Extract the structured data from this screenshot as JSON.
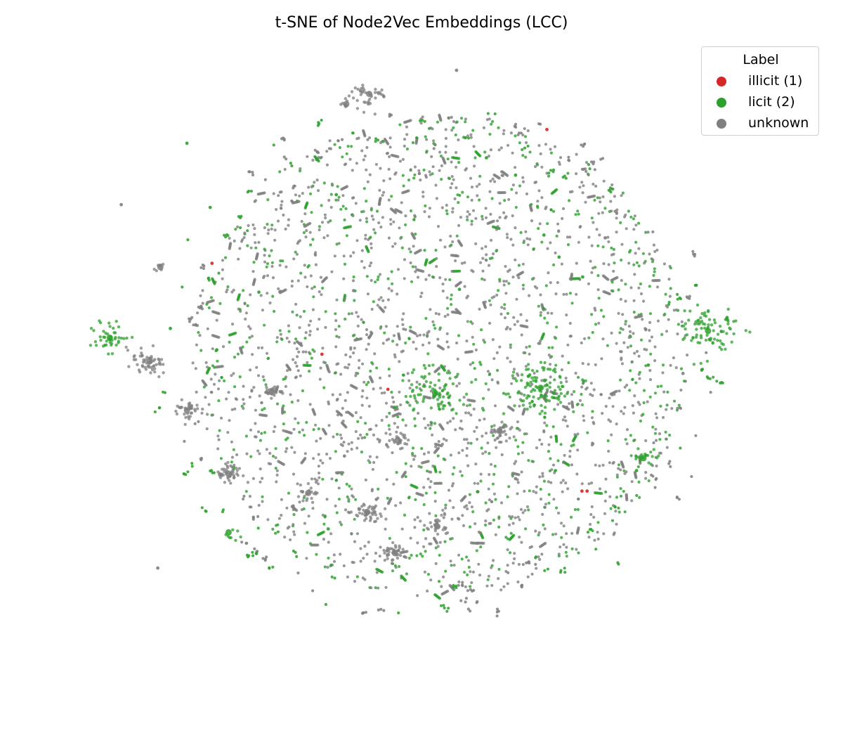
{
  "chart_data": {
    "type": "scatter",
    "title": "t-SNE of Node2Vec Embeddings (LCC)",
    "xlabel": "",
    "ylabel": "",
    "axes_visible": false,
    "grid": false,
    "legend": {
      "title": "Label",
      "placement": "top-right",
      "entries": [
        {
          "label": "illicit (1)",
          "color": "#d62728"
        },
        {
          "label": "licit (2)",
          "color": "#2ca02c"
        },
        {
          "label": "unknown",
          "color": "#7f7f7f"
        }
      ]
    },
    "xlim": [
      -100,
      100
    ],
    "ylim": [
      -100,
      100
    ],
    "series": [
      {
        "name": "illicit (1)",
        "color": "#d62728",
        "x": [
          34.0,
          43.5,
          44.9,
          -27.0,
          -9.1,
          -56.8
        ],
        "y": [
          80.9,
          -35.6,
          -35.6,
          8.5,
          -2.8,
          37.8
        ],
        "clusters": []
      },
      {
        "name": "licit (2)",
        "color": "#2ca02c",
        "x": [
          -63.6,
          -57.3,
          -23.1,
          17.6,
          25.5,
          -44.1,
          10.3,
          37.3,
          -68.1,
          -55.5,
          33.2,
          43.7,
          -25.3,
          15.2,
          58.3,
          61.5
        ],
        "y": [
          76.5,
          55.8,
          59.9,
          71.8,
          66.2,
          28.5,
          29.4,
          39.8,
          16.8,
          9.9,
          46.9,
          33.4,
          -47.8,
          -35.8,
          -29.0,
          5.0
        ],
        "clusters": [
          {
            "cx": -84.5,
            "cy": 13.8,
            "spread": 2.5,
            "n": 45
          },
          {
            "cx": 77.7,
            "cy": 16.0,
            "spread": 4.2,
            "n": 90
          },
          {
            "cx": 32.3,
            "cy": -2.3,
            "spread": 5.0,
            "n": 110
          },
          {
            "cx": 3.7,
            "cy": -4.0,
            "spread": 5.5,
            "n": 90
          },
          {
            "cx": 60.2,
            "cy": -25.0,
            "spread": 1.6,
            "n": 20
          },
          {
            "cx": -52.3,
            "cy": -48.9,
            "spread": 1.4,
            "n": 8
          }
        ]
      },
      {
        "name": "unknown",
        "color": "#7f7f7f",
        "x": [
          9.5,
          -81.4,
          -71.5,
          49.8,
          -20.9,
          70.9,
          25.5,
          -18.4,
          -34.8
        ],
        "y": [
          100.0,
          56.7,
          -60.4,
          46.0,
          -24.3,
          2.3,
          -31.6,
          29.0,
          -40.4
        ],
        "clusters": [
          {
            "cx": -14.2,
            "cy": 92.4,
            "spread": 2.4,
            "n": 40
          },
          {
            "cx": -73.7,
            "cy": 6.2,
            "spread": 2.5,
            "n": 55
          },
          {
            "cx": -63.6,
            "cy": -9.6,
            "spread": 1.8,
            "n": 35
          },
          {
            "cx": -52.5,
            "cy": -29.9,
            "spread": 1.8,
            "n": 35
          },
          {
            "cx": -14.7,
            "cy": -42.4,
            "spread": 2.2,
            "n": 40
          },
          {
            "cx": 4.3,
            "cy": -47.0,
            "spread": 2.0,
            "n": 30
          },
          {
            "cx": -6.5,
            "cy": -19.2,
            "spread": 1.5,
            "n": 25
          },
          {
            "cx": 21.1,
            "cy": -16.2,
            "spread": 1.9,
            "n": 30
          },
          {
            "cx": -30.7,
            "cy": -36.2,
            "spread": 1.6,
            "n": 20
          },
          {
            "cx": -40.5,
            "cy": -3.8,
            "spread": 1.6,
            "n": 25
          },
          {
            "cx": -70.8,
            "cy": 36.6,
            "spread": 0.8,
            "n": 8
          },
          {
            "cx": -20.4,
            "cy": 89.1,
            "spread": 0.7,
            "n": 8
          },
          {
            "cx": -7.2,
            "cy": -55.6,
            "spread": 1.6,
            "n": 30
          }
        ]
      }
    ]
  }
}
